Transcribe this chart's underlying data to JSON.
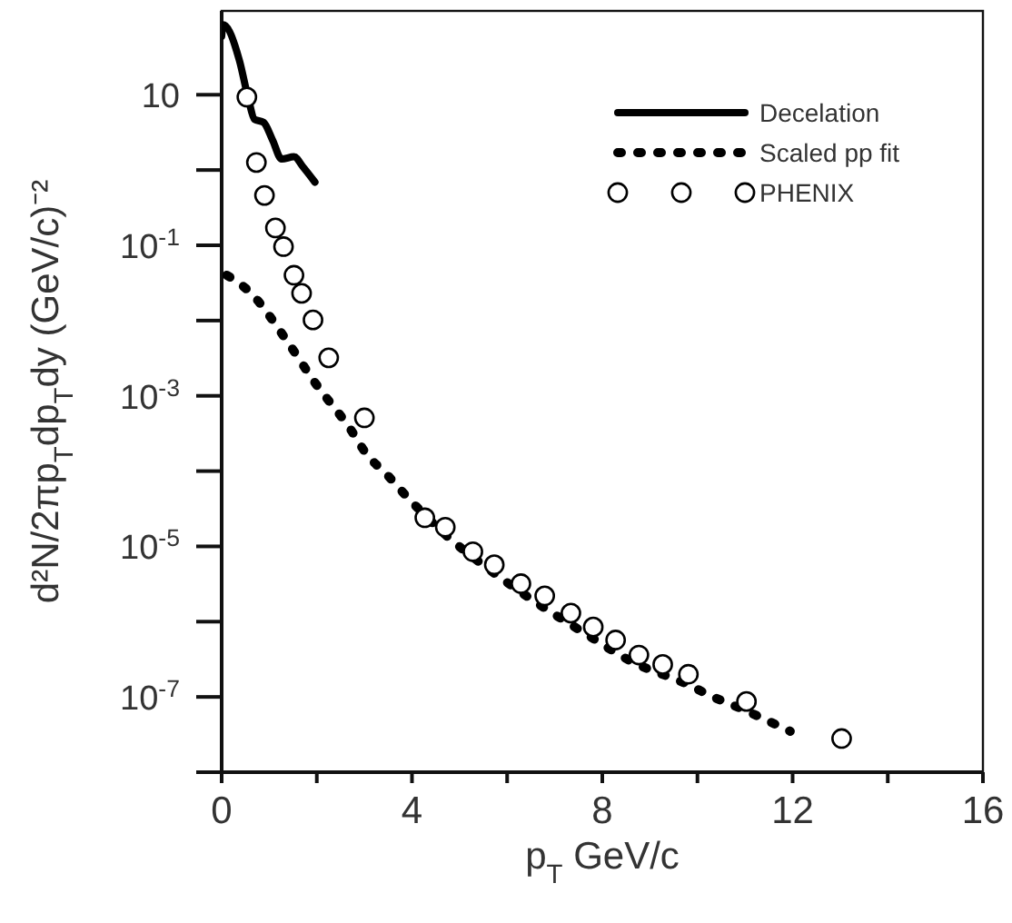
{
  "chart_data": {
    "type": "line",
    "xlabel": "p$_{T}$   GeV/c",
    "ylabel": "d²N/2πp$_{T}$dp$_{T}$dy   (GeV/c)⁻²",
    "log": "y",
    "xlim": [
      0,
      16
    ],
    "ylim": [
      1e-08,
      130
    ],
    "xticks": [
      0,
      {
        "value": 2,
        "label": null
      },
      4,
      {
        "value": 6,
        "label": null
      },
      8,
      {
        "value": 10,
        "label": null
      },
      12,
      {
        "value": 14,
        "label": null
      },
      16
    ],
    "yticks": [
      {
        "value": 1e-08,
        "label": null
      },
      {
        "value": 1e-07,
        "label": "10$^{-7}$"
      },
      {
        "value": 1e-06,
        "label": null
      },
      {
        "value": 1e-05,
        "label": "10$^{-5}$"
      },
      {
        "value": 0.0001,
        "label": null
      },
      {
        "value": 0.001,
        "label": "10$^{-3}$"
      },
      {
        "value": 0.01,
        "label": null
      },
      {
        "value": 0.1,
        "label": "10$^{-1}$"
      },
      {
        "value": 1,
        "label": null
      },
      10
    ],
    "legend": "top right",
    "grid": false,
    "series": [
      {
        "name": "Decelation",
        "line_style": "solid",
        "marker": "none",
        "color": "#000000",
        "x": [
          0,
          0.03,
          0.37,
          0.56,
          0.69,
          0.88,
          1.07,
          1.26,
          1.52,
          1.71,
          1.96
        ],
        "values": [
          60,
          85,
          29,
          8.9,
          4.7,
          4.3,
          2.5,
          1.4,
          1.5,
          1.1,
          0.69
        ]
      },
      {
        "name": "Scaled pp fit",
        "line_style": "dotted",
        "marker": "none",
        "color": "#000000",
        "x": [
          0.11,
          0.62,
          1.32,
          1.96,
          2.72,
          3.04,
          3.48,
          3.89,
          4.72,
          5.65,
          6.67,
          7.62,
          8.64,
          9.76,
          10.33,
          10.87,
          11.95
        ],
        "values": [
          0.04,
          0.023,
          0.006,
          0.0015,
          0.00035,
          0.00017,
          8.9e-05,
          4.6e-05,
          1.4e-05,
          4.8e-06,
          1.7e-06,
          7.1e-07,
          2.9e-07,
          1.5e-07,
          1e-07,
          7.2e-08,
          3.5e-08
        ]
      },
      {
        "name": "PHENIX",
        "type": "scatter",
        "marker": "circle",
        "color": "#000000",
        "x": [
          0.53,
          0.73,
          0.9,
          1.13,
          1.3,
          1.52,
          1.68,
          1.92,
          2.25,
          3.0,
          4.27,
          4.7,
          5.28,
          5.73,
          6.29,
          6.79,
          7.34,
          7.81,
          8.28,
          8.77,
          9.27,
          9.81,
          11.03,
          13.03
        ],
        "values": [
          9.3,
          1.26,
          0.46,
          0.17,
          0.096,
          0.04,
          0.023,
          0.0102,
          0.0032,
          0.00051,
          2.4e-05,
          1.8e-05,
          8.5e-06,
          5.7e-06,
          3.2e-06,
          2.2e-06,
          1.3e-06,
          8.5e-07,
          5.7e-07,
          3.6e-07,
          2.7e-07,
          2e-07,
          8.7e-08,
          2.8e-08
        ]
      }
    ]
  }
}
